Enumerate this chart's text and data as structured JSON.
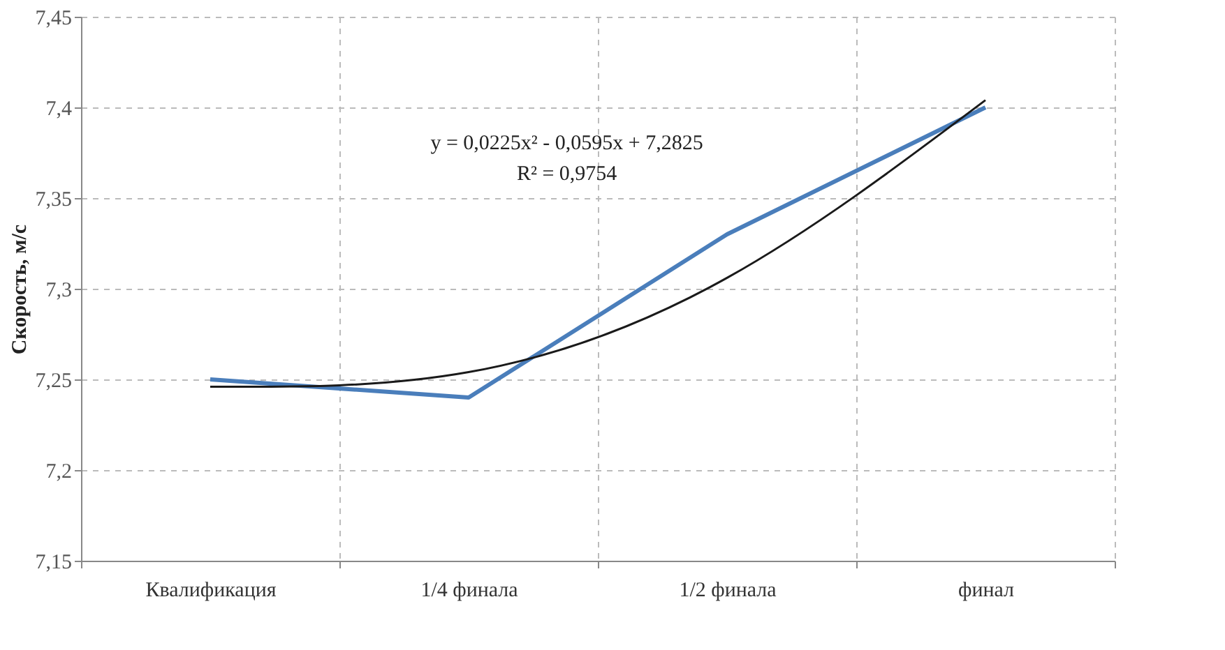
{
  "chart_data": {
    "type": "line",
    "ylabel": "Скорость, м/с",
    "categories": [
      "Квалификация",
      "1/4 финала",
      "1/2 финала",
      "финал"
    ],
    "series": [
      {
        "color": "#4a7ebb",
        "values": [
          7.25,
          7.24,
          7.33,
          7.4
        ]
      },
      {
        "type": "line",
        "color": "#1a1a1a",
        "values": [
          7.246,
          7.254,
          7.306,
          7.404
        ]
      }
    ],
    "ylim": [
      7.15,
      7.45
    ],
    "yticks": [
      {
        "value": 7.15,
        "label": "7,15"
      },
      {
        "value": 7.2,
        "label": "7,2"
      },
      {
        "value": 7.25,
        "label": "7,25"
      },
      {
        "value": 7.3,
        "label": "7,3"
      },
      {
        "value": 7.35,
        "label": "7,35"
      },
      {
        "value": 7.4,
        "label": "7,4"
      },
      {
        "value": 7.45,
        "label": "7,45"
      }
    ],
    "annotations": [
      "y = 0,0225x² - 0,0595x + 7,2825",
      "R² = 0,9754"
    ],
    "grid": true,
    "line_style": "solid",
    "marker": "none"
  }
}
